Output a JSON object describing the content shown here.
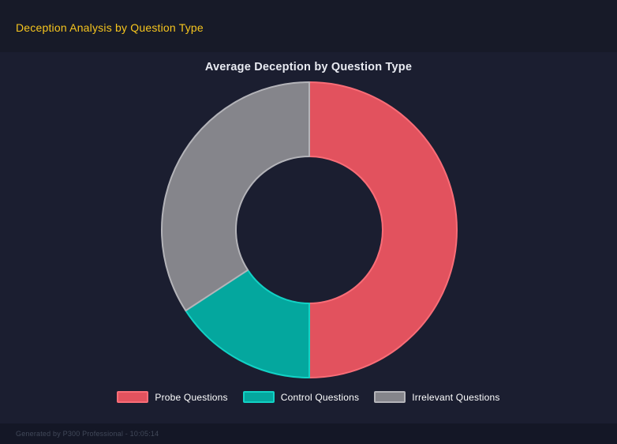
{
  "page": {
    "title": "Deception Analysis by Question Type",
    "title_color": "#F6C51E",
    "background": "#171A28",
    "panel_background": "#1B1E30"
  },
  "chart_data": {
    "type": "pie",
    "variant": "doughnut",
    "title": "Average Deception by Question Type",
    "labels": [
      "Probe Questions",
      "Control Questions",
      "Irrelevant Questions"
    ],
    "values_percent": [
      50.0,
      15.8,
      34.2
    ],
    "colors": [
      "#E2525E",
      "#04A79E",
      "#85858B"
    ],
    "border_colors": [
      "#F96D77",
      "#12D2C5",
      "#B4B4B9"
    ],
    "start_angle_deg": 0,
    "direction": "clockwise",
    "cutout_percent": 50,
    "legend_position": "bottom",
    "grid": false
  },
  "footer": {
    "text": "Generated by P300 Professional - 10:05:14"
  }
}
